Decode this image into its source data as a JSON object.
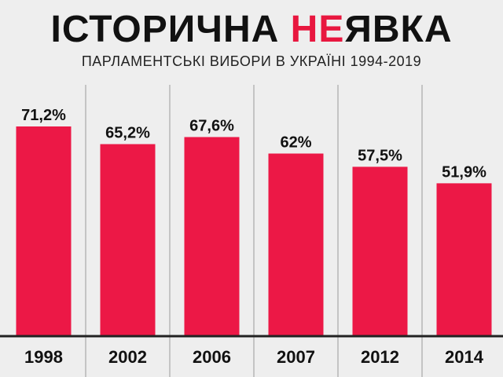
{
  "title": {
    "part1": "ІСТОРИЧНА ",
    "accent": "НЕ",
    "part2": "ЯВКА"
  },
  "subtitle": "ПАРЛАМЕНТСЬКІ ВИБОРИ В УКРАЇНІ 1994-2019",
  "colors": {
    "bar": "#ec1846",
    "accent": "#e8173f",
    "background": "#eeeeee",
    "text": "#111111",
    "axis": "#222222",
    "divider": "#9a9a9a"
  },
  "chart_data": {
    "type": "bar",
    "categories": [
      "1998",
      "2002",
      "2006",
      "2007",
      "2012",
      "2014"
    ],
    "values": [
      71.2,
      65.2,
      67.6,
      62,
      57.5,
      51.9
    ],
    "data_labels": [
      "71,2%",
      "65,2%",
      "67,6%",
      "62%",
      "57,5%",
      "51,9%"
    ],
    "ylim": [
      0,
      100
    ],
    "grid": false,
    "legend": "none"
  }
}
